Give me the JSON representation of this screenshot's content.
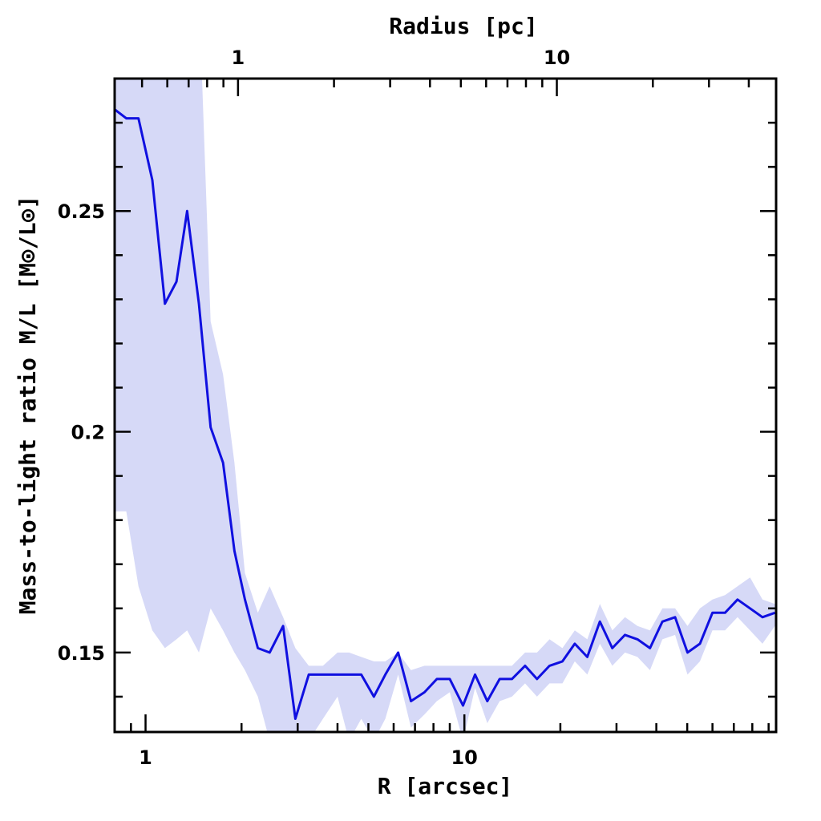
{
  "chart_data": {
    "type": "line",
    "xlabel": "R [arcsec]",
    "x2label": "Radius [pc]",
    "ylabel": "Mass-to-light ratio M/L [M⊙/L⊙]",
    "xscale": "log",
    "xlim": [
      0.8,
      95
    ],
    "ylim": [
      0.132,
      0.28
    ],
    "x_ticks": [
      1,
      10
    ],
    "x_tick_labels": [
      "1",
      "10"
    ],
    "x2_ticks": [
      1,
      10
    ],
    "x2_tick_labels": [
      "1",
      "10"
    ],
    "y_ticks": [
      0.15,
      0.2,
      0.25
    ],
    "y_tick_labels": [
      "0.15",
      "0.2",
      "0.25"
    ],
    "grid": false,
    "legend": "none",
    "colors": {
      "line": "#1010e0",
      "band": "#d6d9f7"
    },
    "series": [
      {
        "x": [
          0.8,
          0.87,
          0.95,
          1.05,
          1.15,
          1.25,
          1.35,
          1.47,
          1.6,
          1.75,
          1.9,
          2.05,
          2.25,
          2.45,
          2.7,
          2.95,
          3.25,
          3.6,
          4.0,
          4.35,
          4.75,
          5.2,
          5.65,
          6.2,
          6.8,
          7.5,
          8.2,
          9.0,
          9.9,
          10.8,
          11.8,
          12.9,
          14.1,
          15.5,
          16.9,
          18.5,
          20.3,
          22.2,
          24.3,
          26.6,
          29.1,
          31.9,
          34.9,
          38.2,
          41.8,
          45.8,
          50.1,
          54.8,
          60.0,
          65.7,
          71.9,
          78.7,
          86.1,
          94.2
        ],
        "y": [
          0.273,
          0.271,
          0.271,
          0.257,
          0.229,
          0.234,
          0.25,
          0.229,
          0.201,
          0.193,
          0.173,
          0.162,
          0.151,
          0.15,
          0.156,
          0.135,
          0.145,
          0.145,
          0.145,
          0.145,
          0.145,
          0.14,
          0.145,
          0.15,
          0.139,
          0.141,
          0.144,
          0.144,
          0.138,
          0.145,
          0.139,
          0.144,
          0.144,
          0.147,
          0.144,
          0.147,
          0.148,
          0.152,
          0.149,
          0.157,
          0.151,
          0.154,
          0.153,
          0.151,
          0.157,
          0.158,
          0.15,
          0.152,
          0.159,
          0.159,
          0.162,
          0.16,
          0.158,
          0.159
        ],
        "y_upper": [
          0.3,
          0.3,
          0.3,
          0.3,
          0.3,
          0.3,
          0.3,
          0.3,
          0.225,
          0.213,
          0.193,
          0.168,
          0.159,
          0.165,
          0.158,
          0.151,
          0.147,
          0.147,
          0.15,
          0.15,
          0.149,
          0.148,
          0.148,
          0.15,
          0.146,
          0.147,
          0.147,
          0.147,
          0.147,
          0.147,
          0.147,
          0.147,
          0.147,
          0.15,
          0.15,
          0.153,
          0.151,
          0.155,
          0.153,
          0.161,
          0.155,
          0.158,
          0.156,
          0.155,
          0.16,
          0.16,
          0.156,
          0.16,
          0.162,
          0.163,
          0.165,
          0.167,
          0.162,
          0.161
        ],
        "y_lower": [
          0.182,
          0.182,
          0.165,
          0.155,
          0.151,
          0.153,
          0.155,
          0.15,
          0.16,
          0.155,
          0.15,
          0.146,
          0.14,
          0.13,
          0.125,
          0.125,
          0.13,
          0.135,
          0.14,
          0.13,
          0.135,
          0.13,
          0.135,
          0.145,
          0.133,
          0.136,
          0.139,
          0.141,
          0.13,
          0.142,
          0.134,
          0.139,
          0.14,
          0.143,
          0.14,
          0.143,
          0.143,
          0.148,
          0.145,
          0.152,
          0.147,
          0.15,
          0.149,
          0.146,
          0.153,
          0.154,
          0.145,
          0.148,
          0.155,
          0.155,
          0.158,
          0.155,
          0.152,
          0.156
        ]
      }
    ]
  }
}
